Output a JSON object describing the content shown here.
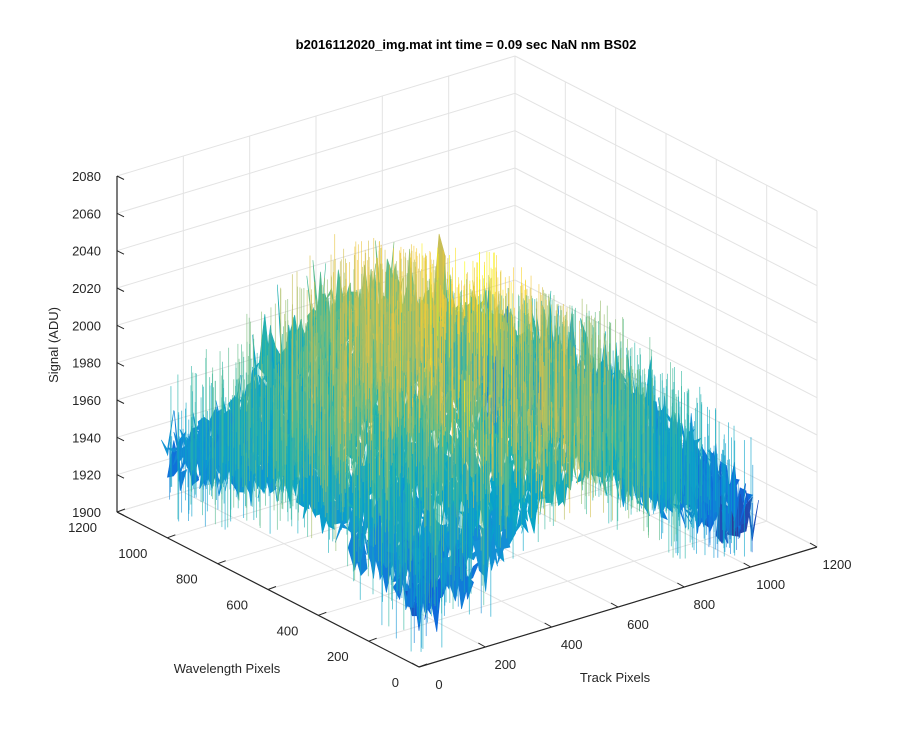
{
  "chart_data": {
    "type": "surface",
    "title": "b2016112020_img.mat int time = 0.09 sec  NaN nm BS02",
    "xlabel": "Track Pixels",
    "ylabel": "Wavelength Pixels",
    "zlabel": "Signal (ADU)",
    "xlim": [
      0,
      1200
    ],
    "ylim": [
      0,
      1200
    ],
    "zlim": [
      1900,
      2080
    ],
    "xticks": [
      "0",
      "200",
      "400",
      "600",
      "800",
      "1000",
      "1200"
    ],
    "yticks": [
      "0",
      "200",
      "400",
      "600",
      "800",
      "1000",
      "1200"
    ],
    "zticks": [
      "1900",
      "1920",
      "1940",
      "1960",
      "1980",
      "2000",
      "2020",
      "2040",
      "2060",
      "2080"
    ],
    "grid": true,
    "colormap": "parula",
    "surface_extent": {
      "x": [
        0,
        1024
      ],
      "y": [
        0,
        1024
      ]
    },
    "profile_along_track": {
      "x": [
        0,
        200,
        400,
        500,
        600,
        800,
        1024
      ],
      "mean_signal": [
        1948,
        1960,
        1990,
        2000,
        1990,
        1960,
        1935
      ]
    },
    "profile_along_wavelength": {
      "y": [
        0,
        256,
        512,
        768,
        1024
      ],
      "mean_signal": [
        1950,
        1968,
        1985,
        1968,
        1955
      ]
    },
    "peak_signal": 2065,
    "min_signal": 1905
  }
}
